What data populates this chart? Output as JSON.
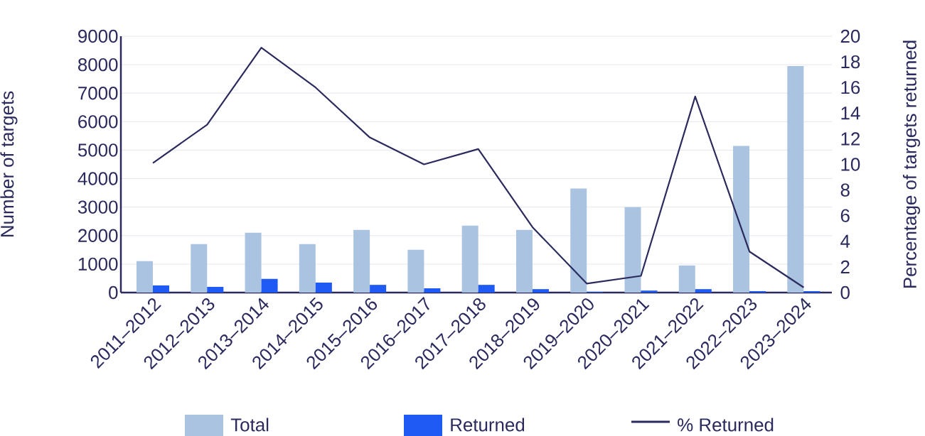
{
  "chart_data": {
    "type": "bar",
    "categories": [
      "2011–2012",
      "2012–2013",
      "2013–2014",
      "2014–2015",
      "2015–2016",
      "2016–2017",
      "2017–2018",
      "2018–2019",
      "2019–2020",
      "2020–2021",
      "2021–2022",
      "2022–2023",
      "2023–2024"
    ],
    "series": [
      {
        "name": "Total",
        "color": "#a9c3e0",
        "values": [
          1100,
          1700,
          2100,
          1700,
          2200,
          1500,
          2350,
          2200,
          3650,
          3000,
          950,
          5150,
          7950
        ]
      },
      {
        "name": "Returned",
        "color": "#1f5af5",
        "values": [
          250,
          200,
          480,
          350,
          270,
          150,
          270,
          120,
          20,
          70,
          120,
          50,
          50
        ]
      },
      {
        "name": "% Returned",
        "type": "line",
        "axis": "y2",
        "color": "#2b2a5e",
        "values": [
          10.1,
          13.1,
          19.1,
          16.0,
          12.1,
          10.0,
          11.2,
          5.1,
          0.7,
          1.3,
          15.3,
          3.2,
          0.4
        ]
      }
    ],
    "ylabel": "Number of targets",
    "y2label": "Percentage of targets returned",
    "ylim": [
      0,
      9000
    ],
    "yticks": [
      0,
      1000,
      2000,
      3000,
      4000,
      5000,
      6000,
      7000,
      8000,
      9000
    ],
    "y2lim": [
      0,
      20
    ],
    "y2ticks": [
      0,
      2,
      4,
      6,
      8,
      10,
      12,
      14,
      16,
      18,
      20
    ],
    "grid": "y",
    "legend": "bottom"
  }
}
